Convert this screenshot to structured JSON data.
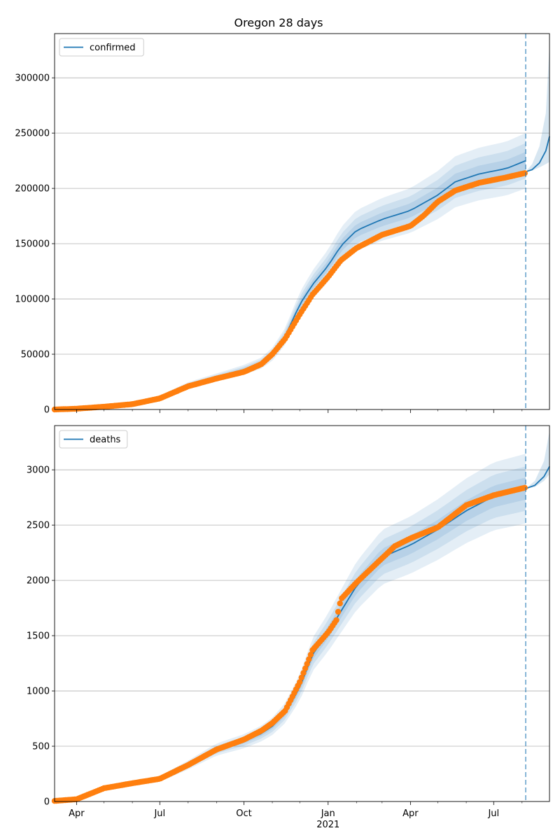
{
  "title": "Oregon 28 days",
  "chart_data": [
    {
      "type": "line",
      "legend": "confirmed",
      "legend_position": "top-left",
      "grid": "y",
      "ylim": [
        0,
        340000
      ],
      "yticks": [
        0,
        50000,
        100000,
        150000,
        200000,
        250000,
        300000
      ],
      "yticklabels": [
        "0",
        "50000",
        "100000",
        "150000",
        "200000",
        "250000",
        "300000"
      ],
      "xlim": [
        "2020-03-08",
        "2021-08-31"
      ],
      "forecast_start": "2021-08-05",
      "model_line": [
        [
          "2020-03-08",
          0
        ],
        [
          "2020-05-01",
          2500
        ],
        [
          "2020-06-01",
          5000
        ],
        [
          "2020-07-01",
          11000
        ],
        [
          "2020-08-01",
          22000
        ],
        [
          "2020-09-01",
          29000
        ],
        [
          "2020-10-01",
          36000
        ],
        [
          "2020-10-20",
          42000
        ],
        [
          "2020-11-01",
          50000
        ],
        [
          "2020-11-15",
          66000
        ],
        [
          "2020-12-01",
          95000
        ],
        [
          "2020-12-15",
          113000
        ],
        [
          "2021-01-01",
          130000
        ],
        [
          "2021-01-15",
          148000
        ],
        [
          "2021-02-01",
          162000
        ],
        [
          "2021-03-01",
          172000
        ],
        [
          "2021-04-01",
          180000
        ],
        [
          "2021-05-01",
          194000
        ],
        [
          "2021-05-20",
          206000
        ],
        [
          "2021-06-15",
          213000
        ],
        [
          "2021-07-15",
          218000
        ],
        [
          "2021-08-05",
          225000
        ]
      ],
      "forecast_line": [
        [
          "2021-08-05",
          215000
        ],
        [
          "2021-08-12",
          217000
        ],
        [
          "2021-08-20",
          223000
        ],
        [
          "2021-08-27",
          234000
        ],
        [
          "2021-08-31",
          247000
        ]
      ],
      "band_widths": [
        0.035,
        0.07,
        0.11
      ],
      "forecast_band": {
        "lower": [
          215000,
          216000,
          219000,
          222000,
          224000
        ],
        "upper": [
          215000,
          222000,
          238000,
          268000,
          330000
        ]
      },
      "observed": [
        [
          "2020-03-08",
          0
        ],
        [
          "2020-04-01",
          700
        ],
        [
          "2020-05-01",
          2500
        ],
        [
          "2020-06-01",
          4800
        ],
        [
          "2020-07-01",
          10000
        ],
        [
          "2020-08-01",
          21000
        ],
        [
          "2020-09-01",
          28000
        ],
        [
          "2020-10-01",
          34000
        ],
        [
          "2020-10-20",
          41000
        ],
        [
          "2020-11-01",
          50000
        ],
        [
          "2020-11-15",
          64000
        ],
        [
          "2020-12-01",
          86000
        ],
        [
          "2020-12-15",
          104000
        ],
        [
          "2021-01-01",
          120000
        ],
        [
          "2021-01-15",
          135000
        ],
        [
          "2021-02-01",
          146000
        ],
        [
          "2021-03-01",
          158000
        ],
        [
          "2021-04-01",
          166000
        ],
        [
          "2021-04-15",
          175000
        ],
        [
          "2021-05-01",
          188000
        ],
        [
          "2021-05-20",
          198000
        ],
        [
          "2021-06-15",
          205000
        ],
        [
          "2021-07-15",
          210000
        ],
        [
          "2021-08-05",
          214000
        ]
      ]
    },
    {
      "type": "line",
      "legend": "deaths",
      "legend_position": "top-left",
      "grid": "y",
      "ylim": [
        0,
        3400
      ],
      "yticks": [
        0,
        500,
        1000,
        1500,
        2000,
        2500,
        3000
      ],
      "yticklabels": [
        "0",
        "500",
        "1000",
        "1500",
        "2000",
        "2500",
        "3000"
      ],
      "xlim": [
        "2020-03-08",
        "2021-08-31"
      ],
      "forecast_start": "2021-08-05",
      "model_line": [
        [
          "2020-03-08",
          0
        ],
        [
          "2020-04-01",
          15
        ],
        [
          "2020-05-01",
          120
        ],
        [
          "2020-06-01",
          165
        ],
        [
          "2020-07-01",
          205
        ],
        [
          "2020-08-01",
          330
        ],
        [
          "2020-09-01",
          470
        ],
        [
          "2020-10-01",
          545
        ],
        [
          "2020-10-20",
          615
        ],
        [
          "2020-11-01",
          680
        ],
        [
          "2020-11-15",
          800
        ],
        [
          "2020-12-01",
          1030
        ],
        [
          "2020-12-15",
          1330
        ],
        [
          "2021-01-01",
          1530
        ],
        [
          "2021-01-15",
          1720
        ],
        [
          "2021-02-01",
          1950
        ],
        [
          "2021-03-01",
          2210
        ],
        [
          "2021-04-01",
          2320
        ],
        [
          "2021-05-01",
          2460
        ],
        [
          "2021-06-01",
          2630
        ],
        [
          "2021-07-01",
          2760
        ],
        [
          "2021-08-05",
          2830
        ]
      ],
      "forecast_line": [
        [
          "2021-08-05",
          2830
        ],
        [
          "2021-08-15",
          2860
        ],
        [
          "2021-08-25",
          2940
        ],
        [
          "2021-08-31",
          3030
        ]
      ],
      "band_widths": [
        0.035,
        0.07,
        0.11
      ],
      "forecast_band": {
        "lower": [
          2830,
          2845,
          2900,
          2960
        ],
        "upper": [
          2830,
          2900,
          3080,
          3350
        ]
      },
      "observed": [
        [
          "2020-03-08",
          5
        ],
        [
          "2020-04-01",
          20
        ],
        [
          "2020-05-01",
          120
        ],
        [
          "2020-06-01",
          165
        ],
        [
          "2020-07-01",
          205
        ],
        [
          "2020-08-01",
          330
        ],
        [
          "2020-09-01",
          470
        ],
        [
          "2020-10-01",
          560
        ],
        [
          "2020-10-20",
          640
        ],
        [
          "2020-11-01",
          710
        ],
        [
          "2020-11-15",
          820
        ],
        [
          "2020-12-01",
          1080
        ],
        [
          "2020-12-15",
          1370
        ],
        [
          "2021-01-01",
          1530
        ],
        [
          "2021-01-10",
          1640
        ],
        [
          "2021-01-15",
          1830
        ],
        [
          "2021-02-01",
          1980
        ],
        [
          "2021-02-20",
          2130
        ],
        [
          "2021-03-01",
          2200
        ],
        [
          "2021-03-15",
          2310
        ],
        [
          "2021-04-01",
          2380
        ],
        [
          "2021-05-01",
          2480
        ],
        [
          "2021-06-01",
          2680
        ],
        [
          "2021-07-01",
          2770
        ],
        [
          "2021-08-05",
          2840
        ]
      ]
    }
  ],
  "xaxis": {
    "ticks": [
      [
        "2020-04-01",
        "Apr"
      ],
      [
        "2020-07-01",
        "Jul"
      ],
      [
        "2020-10-01",
        "Oct"
      ],
      [
        "2021-01-01",
        "Jan"
      ],
      [
        "2021-04-01",
        "Apr"
      ],
      [
        "2021-07-01",
        "Jul"
      ]
    ],
    "year_label": "2021",
    "minor_months": [
      "2020-05-01",
      "2020-06-01",
      "2020-08-01",
      "2020-09-01",
      "2020-11-01",
      "2020-12-01",
      "2021-02-01",
      "2021-03-01",
      "2021-05-01",
      "2021-06-01",
      "2021-08-01"
    ]
  },
  "colors": {
    "model": "#1f77b4",
    "observed": "#ff7f0e",
    "band": "#1f77b4",
    "grid": "#b0b0b0",
    "forecast_line": "#1f77b4"
  }
}
